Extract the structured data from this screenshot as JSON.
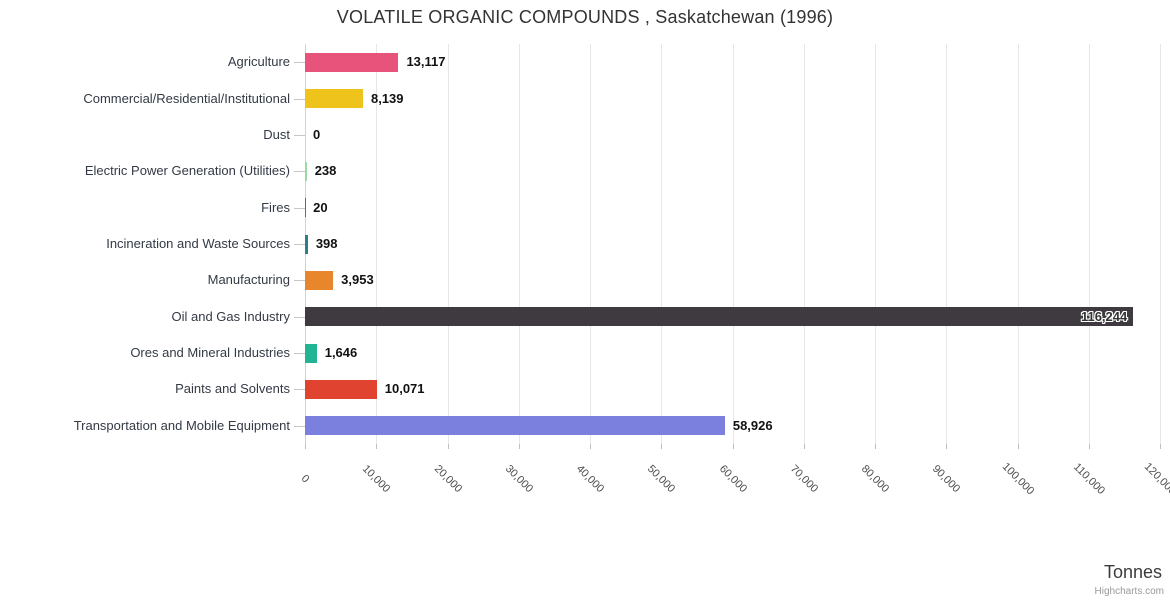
{
  "chart_data": {
    "type": "bar",
    "orientation": "horizontal",
    "title": "VOLATILE ORGANIC COMPOUNDS , Saskatchewan (1996)",
    "xlabel": "Tonnes",
    "credits": "Highcharts.com",
    "grid": true,
    "legend": false,
    "xlim": [
      0,
      120000
    ],
    "x_tick_interval": 10000,
    "x_tick_labels": [
      "0",
      "10,000",
      "20,000",
      "30,000",
      "40,000",
      "50,000",
      "60,000",
      "70,000",
      "80,000",
      "90,000",
      "100,000",
      "110,000",
      "120,000"
    ],
    "categories": [
      "Agriculture",
      "Commercial/Residential/Institutional",
      "Dust",
      "Electric Power Generation (Utilities)",
      "Fires",
      "Incineration and Waste Sources",
      "Manufacturing",
      "Oil and Gas Industry",
      "Ores and Mineral Industries",
      "Paints and Solvents",
      "Transportation and Mobile Equipment"
    ],
    "values": [
      13117,
      8139,
      0,
      238,
      20,
      398,
      3953,
      116244,
      1646,
      10071,
      58926
    ],
    "value_labels": [
      "13,117",
      "8,139",
      "0",
      "238",
      "20",
      "398",
      "3,953",
      "116,244",
      "1,646",
      "10,071",
      "58,926"
    ],
    "bar_colors": [
      "#e8537c",
      "#eec31b",
      "#9adba4",
      "#9adba4",
      "#2a8189",
      "#2a8189",
      "#e7862a",
      "#3e3a3f",
      "#23b593",
      "#e0432f",
      "#7b80de"
    ]
  }
}
